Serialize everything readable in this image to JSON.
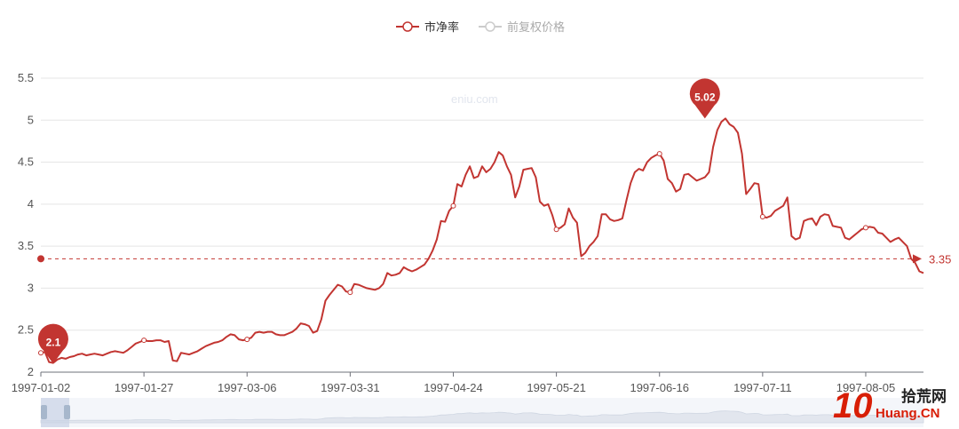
{
  "legend": {
    "items": [
      "市净率",
      "前复权价格"
    ]
  },
  "watermark": "eniu.com",
  "logo": {
    "mark": "10",
    "name": "拾荒网",
    "domain": "Huang.CN"
  },
  "colors": {
    "line": "#c23531",
    "inactive": "#cccccc",
    "grid": "#e5e5e5",
    "axis": "#6e7079"
  },
  "chart_data": {
    "type": "line",
    "series": [
      {
        "name": "市净率",
        "values": [
          2.23,
          2.24,
          2.12,
          2.11,
          2.15,
          2.17,
          2.16,
          2.18,
          2.19,
          2.21,
          2.22,
          2.2,
          2.21,
          2.22,
          2.21,
          2.2,
          2.22,
          2.24,
          2.25,
          2.24,
          2.23,
          2.26,
          2.3,
          2.34,
          2.36,
          2.38,
          2.37,
          2.37,
          2.38,
          2.38,
          2.36,
          2.37,
          2.14,
          2.13,
          2.23,
          2.22,
          2.21,
          2.23,
          2.25,
          2.28,
          2.31,
          2.33,
          2.35,
          2.36,
          2.38,
          2.42,
          2.45,
          2.44,
          2.39,
          2.38,
          2.39,
          2.41,
          2.47,
          2.48,
          2.47,
          2.48,
          2.48,
          2.45,
          2.44,
          2.44,
          2.46,
          2.48,
          2.52,
          2.58,
          2.57,
          2.55,
          2.47,
          2.49,
          2.63,
          2.85,
          2.92,
          2.98,
          3.04,
          3.02,
          2.96,
          2.95,
          3.05,
          3.04,
          3.02,
          3.0,
          2.99,
          2.98,
          3.0,
          3.05,
          3.18,
          3.15,
          3.16,
          3.18,
          3.25,
          3.22,
          3.2,
          3.22,
          3.25,
          3.28,
          3.35,
          3.45,
          3.58,
          3.8,
          3.79,
          3.92,
          3.98,
          4.24,
          4.21,
          4.35,
          4.45,
          4.31,
          4.33,
          4.45,
          4.38,
          4.42,
          4.5,
          4.62,
          4.58,
          4.45,
          4.35,
          4.08,
          4.21,
          4.41,
          4.42,
          4.43,
          4.32,
          4.03,
          3.98,
          4.0,
          3.87,
          3.7,
          3.72,
          3.76,
          3.95,
          3.84,
          3.78,
          3.38,
          3.42,
          3.5,
          3.55,
          3.62,
          3.88,
          3.88,
          3.82,
          3.8,
          3.81,
          3.83,
          4.05,
          4.25,
          4.38,
          4.42,
          4.4,
          4.5,
          4.55,
          4.58,
          4.6,
          4.52,
          4.3,
          4.25,
          4.15,
          4.18,
          4.35,
          4.36,
          4.32,
          4.28,
          4.3,
          4.32,
          4.38,
          4.68,
          4.88,
          4.98,
          5.02,
          4.95,
          4.92,
          4.85,
          4.6,
          4.12,
          4.18,
          4.25,
          4.24,
          3.85,
          3.84,
          3.86,
          3.92,
          3.95,
          3.98,
          4.08,
          3.62,
          3.58,
          3.6,
          3.8,
          3.82,
          3.83,
          3.75,
          3.85,
          3.88,
          3.87,
          3.74,
          3.73,
          3.72,
          3.6,
          3.58,
          3.62,
          3.66,
          3.7,
          3.72,
          3.73,
          3.72,
          3.66,
          3.65,
          3.6,
          3.55,
          3.58,
          3.6,
          3.55,
          3.5,
          3.35,
          3.3,
          3.2,
          3.18
        ]
      }
    ],
    "x_tick_labels": [
      "1997-01-02",
      "1997-01-27",
      "1997-03-06",
      "1997-03-31",
      "1997-04-24",
      "1997-05-21",
      "1997-06-16",
      "1997-07-11",
      "1997-08-05"
    ],
    "x_tick_indices": [
      0,
      25,
      50,
      75,
      100,
      125,
      150,
      175,
      200
    ],
    "y_ticks": [
      2,
      2.5,
      3,
      3.5,
      4,
      4.5,
      5,
      5.5
    ],
    "ylim": [
      2,
      5.5
    ],
    "markers": [
      {
        "label": "2.1",
        "index": 3,
        "value": 2.1
      },
      {
        "label": "5.02",
        "index": 161,
        "value": 5.02
      }
    ],
    "average": {
      "value": 3.35,
      "label": "3.35"
    },
    "dataZoom": {
      "start": 0,
      "end": 100
    },
    "grid": true,
    "legend_position": "top-center"
  }
}
